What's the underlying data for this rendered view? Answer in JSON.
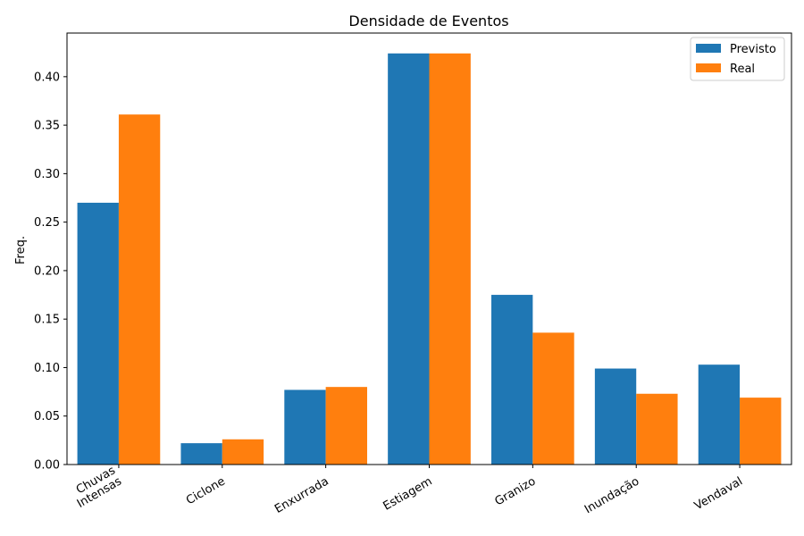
{
  "chart_data": {
    "type": "bar",
    "title": "Densidade de Eventos",
    "xlabel": "",
    "ylabel": "Freq.",
    "categories": [
      "Chuvas\nIntensas",
      "Ciclone",
      "Enxurrada",
      "Estiagem",
      "Granizo",
      "Inundação",
      "Vendaval"
    ],
    "series": [
      {
        "name": "Previsto",
        "color": "#1f77b4",
        "values": [
          0.27,
          0.022,
          0.077,
          0.424,
          0.175,
          0.099,
          0.103
        ]
      },
      {
        "name": "Real",
        "color": "#ff7f0e",
        "values": [
          0.361,
          0.026,
          0.08,
          0.424,
          0.136,
          0.073,
          0.069
        ]
      }
    ],
    "ylim": [
      0,
      0.445
    ],
    "yticks": [
      "0.00",
      "0.05",
      "0.10",
      "0.15",
      "0.20",
      "0.25",
      "0.30",
      "0.35",
      "0.40"
    ],
    "grid": false,
    "legend_position": "top-right"
  }
}
